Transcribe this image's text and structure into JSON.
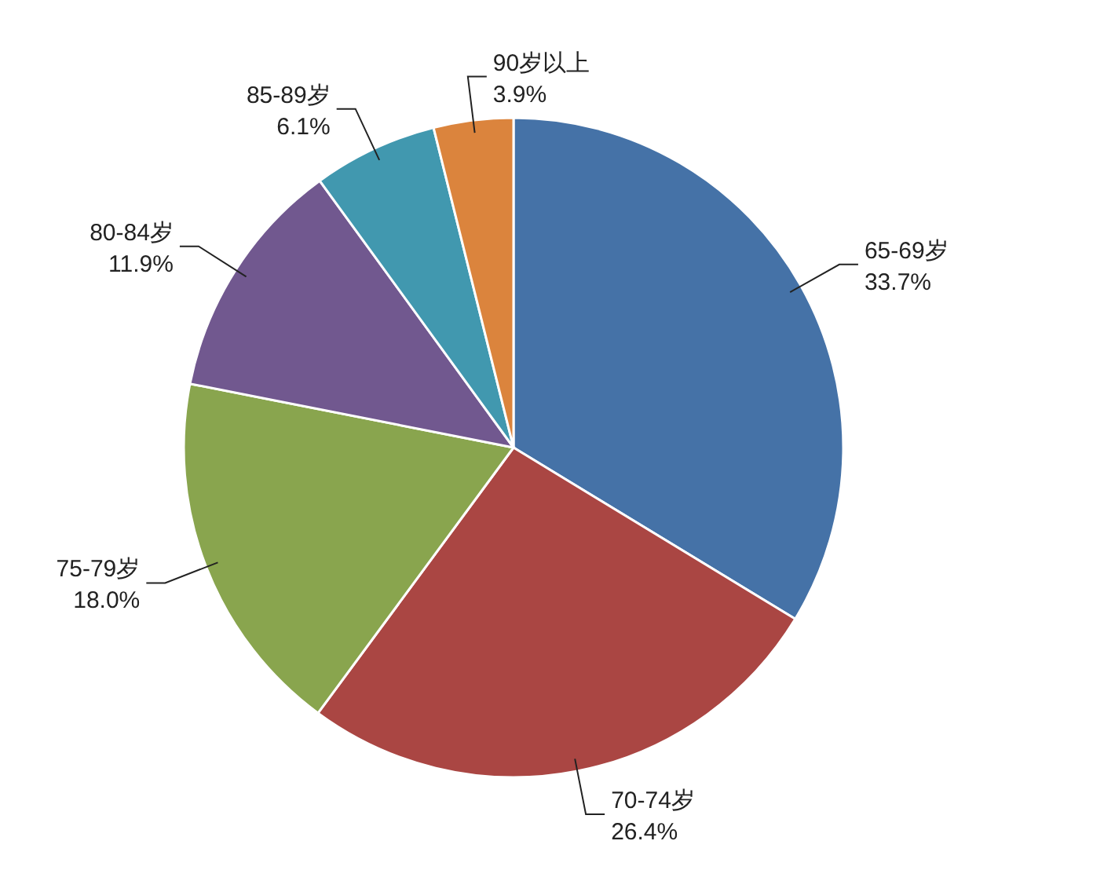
{
  "chart_data": {
    "type": "pie",
    "categories": [
      "65-69岁",
      "70-74岁",
      "75-79岁",
      "80-84岁",
      "85-89岁",
      "90岁以上"
    ],
    "values": [
      33.7,
      26.4,
      18.0,
      11.9,
      6.1,
      3.9
    ],
    "value_labels": [
      "33.7%",
      "26.4%",
      "18.0%",
      "11.9%",
      "6.1%",
      "3.9%"
    ],
    "colors": [
      "#4572a7",
      "#aa4643",
      "#89a54e",
      "#71588f",
      "#4198af",
      "#db843d"
    ]
  }
}
